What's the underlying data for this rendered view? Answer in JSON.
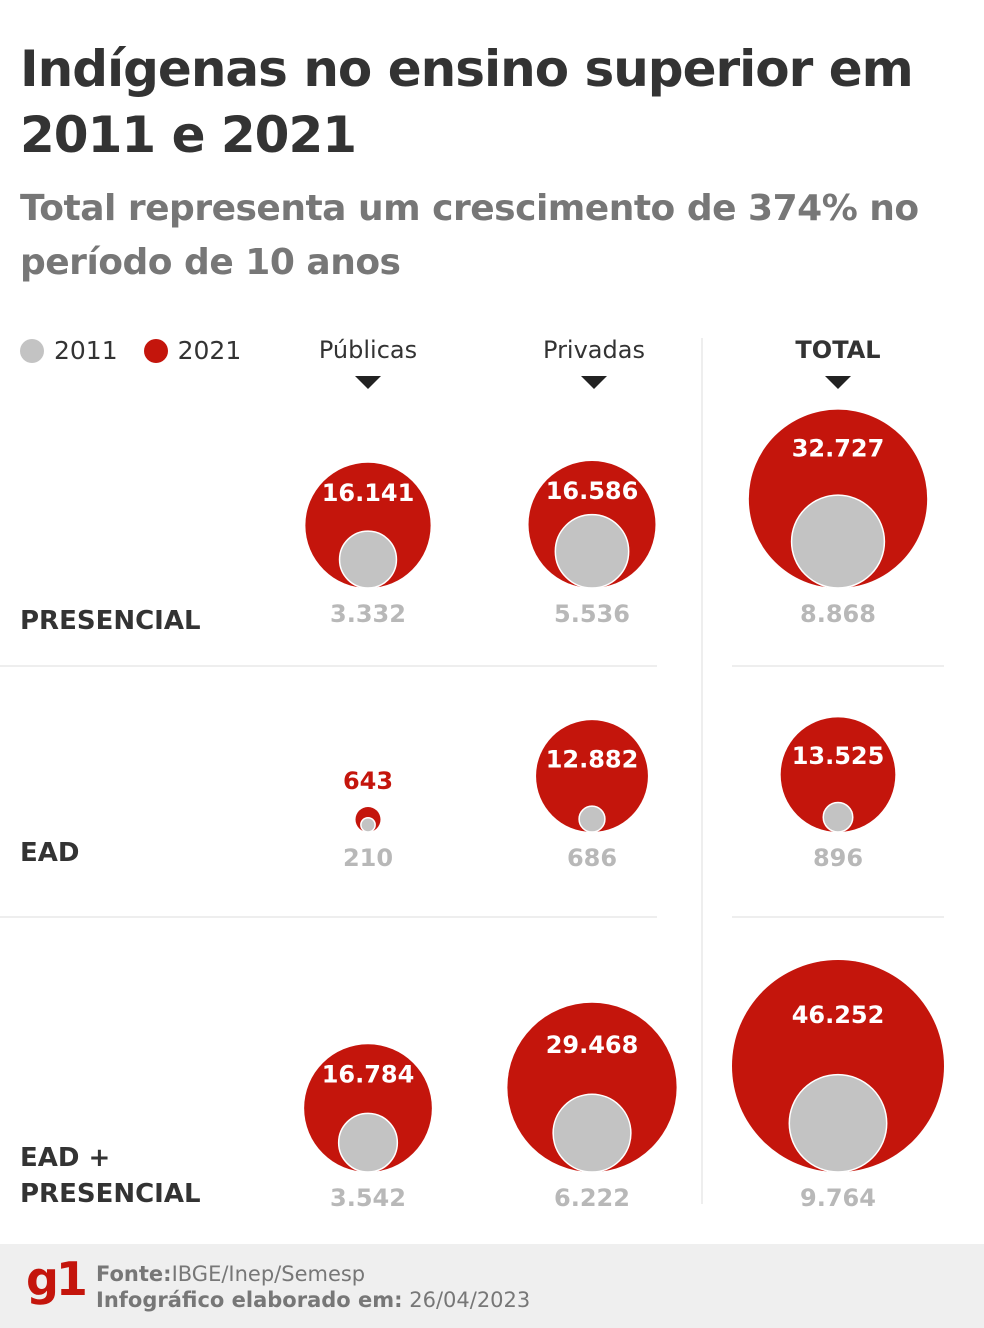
{
  "header": {
    "title": "Indígenas no ensino superior em 2011 e 2021",
    "subtitle": "Total representa um crescimento de 374% no período de 10 anos"
  },
  "legend": [
    {
      "label": "2011",
      "color": "#c3c3c3"
    },
    {
      "label": "2021",
      "color": "#c4150c"
    }
  ],
  "columns": [
    "Públicas",
    "Privadas",
    "TOTAL"
  ],
  "rows": [
    "PRESENCIAL",
    "EAD",
    "EAD + PRESENCIAL"
  ],
  "colors": {
    "y2021": "#c4150c",
    "y2011": "#c3c3c3",
    "label2011": "#b8b8b8"
  },
  "chart_data": {
    "type": "bubble",
    "title": "Indígenas no ensino superior em 2011 e 2021",
    "subtitle": "Total representa um crescimento de 374% no período de 10 anos",
    "legend": [
      "2011",
      "2021"
    ],
    "columns": [
      "Públicas",
      "Privadas",
      "TOTAL"
    ],
    "rows": [
      "PRESENCIAL",
      "EAD",
      "EAD + PRESENCIAL"
    ],
    "series": [
      {
        "name": "2011",
        "values": [
          [
            3332,
            5536,
            8868
          ],
          [
            210,
            686,
            896
          ],
          [
            3542,
            6222,
            9764
          ]
        ],
        "labels": [
          [
            "3.332",
            "5.536",
            "8.868"
          ],
          [
            "210",
            "686",
            "896"
          ],
          [
            "3.542",
            "6.222",
            "9.764"
          ]
        ]
      },
      {
        "name": "2021",
        "values": [
          [
            16141,
            16586,
            32727
          ],
          [
            643,
            12882,
            13525
          ],
          [
            16784,
            29468,
            46252
          ]
        ],
        "labels": [
          [
            "16.141",
            "16.586",
            "32.727"
          ],
          [
            "643",
            "12.882",
            "13.525"
          ],
          [
            "16.784",
            "29.468",
            "46.252"
          ]
        ]
      }
    ]
  },
  "footer": {
    "logo": "g1",
    "source_label": "Fonte:",
    "source_value": "IBGE/Inep/Semesp",
    "date_label": "Infográfico elaborado em:",
    "date_value": "26/04/2023"
  }
}
